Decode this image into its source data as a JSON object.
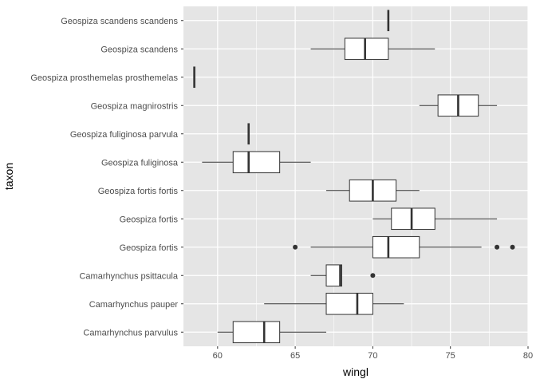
{
  "chart_data": {
    "type": "boxplot",
    "orientation": "horizontal",
    "xlabel": "wingl",
    "ylabel": "taxon",
    "xlim": [
      57.8,
      80
    ],
    "xticks": [
      60,
      65,
      70,
      75,
      80
    ],
    "x_minor_ticks": [
      62.5,
      67.5,
      72.5,
      77.5
    ],
    "grid": true,
    "panel_background": "#e5e5e5",
    "grid_color": "#ffffff",
    "box_fill": "#ffffff",
    "line_color": "#333333",
    "categories": [
      "Camarhynchus parvulus",
      "Camarhynchus pauper",
      "Camarhynchus psittacula",
      "Geospiza fortis",
      "Geospiza fortis ",
      "Geospiza fortis fortis",
      "Geospiza fuliginosa",
      "Geospiza fuliginosa parvula",
      "Geospiza magnirostris",
      "Geospiza prosthemelas prosthemelas",
      "Geospiza scandens",
      "Geospiza scandens scandens"
    ],
    "boxes": [
      {
        "category": "Camarhynchus parvulus",
        "min": 60,
        "q1": 61,
        "median": 63,
        "q3": 64,
        "max": 67,
        "outliers": []
      },
      {
        "category": "Camarhynchus pauper",
        "min": 63,
        "q1": 67,
        "median": 69,
        "q3": 70,
        "max": 72,
        "outliers": []
      },
      {
        "category": "Camarhynchus psittacula",
        "min": 66,
        "q1": 67,
        "median": 67.9,
        "q3": 68,
        "max": 68,
        "outliers": [
          70
        ]
      },
      {
        "category": "Geospiza fortis",
        "min": 66,
        "q1": 70,
        "median": 71,
        "q3": 73,
        "max": 77,
        "outliers": [
          65,
          78,
          79
        ]
      },
      {
        "category": "Geospiza fortis ",
        "min": 70,
        "q1": 71.2,
        "median": 72.5,
        "q3": 74,
        "max": 78,
        "outliers": []
      },
      {
        "category": "Geospiza fortis fortis",
        "min": 67,
        "q1": 68.5,
        "median": 70,
        "q3": 71.5,
        "max": 73,
        "outliers": []
      },
      {
        "category": "Geospiza fuliginosa",
        "min": 59,
        "q1": 61,
        "median": 62,
        "q3": 64,
        "max": 66,
        "outliers": []
      },
      {
        "category": "Geospiza fuliginosa parvula",
        "min": 62,
        "q1": 62,
        "median": 62,
        "q3": 62,
        "max": 62,
        "outliers": []
      },
      {
        "category": "Geospiza magnirostris",
        "min": 73,
        "q1": 74.2,
        "median": 75.5,
        "q3": 76.8,
        "max": 78,
        "outliers": []
      },
      {
        "category": "Geospiza prosthemelas prosthemelas",
        "min": 58.5,
        "q1": 58.5,
        "median": 58.5,
        "q3": 58.5,
        "max": 58.5,
        "outliers": []
      },
      {
        "category": "Geospiza scandens",
        "min": 66,
        "q1": 68.2,
        "median": 69.5,
        "q3": 71,
        "max": 74,
        "outliers": []
      },
      {
        "category": "Geospiza scandens scandens",
        "min": 71,
        "q1": 71,
        "median": 71,
        "q3": 71,
        "max": 71,
        "outliers": []
      }
    ]
  }
}
